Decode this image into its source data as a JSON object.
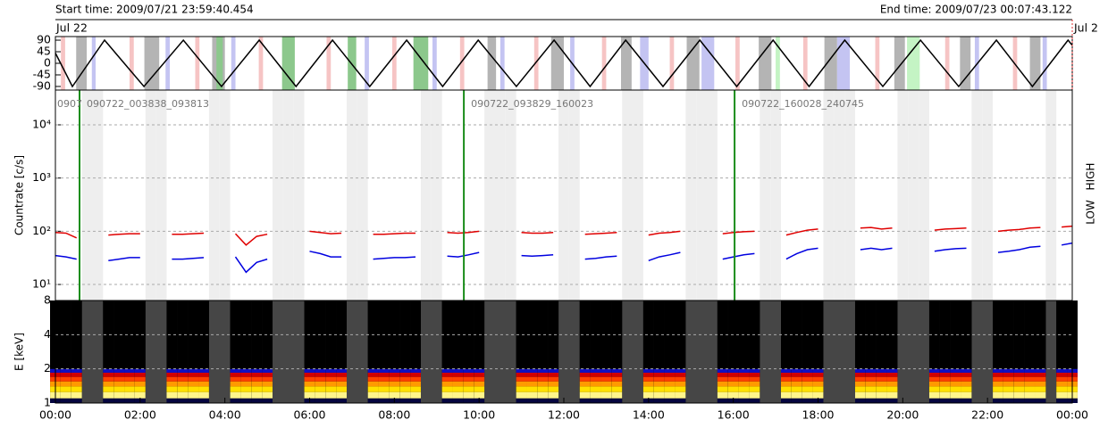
{
  "header": {
    "start": "Start time: 2009/07/21 23:59:40.454",
    "end": "End time: 2009/07/23 00:07:43.122"
  },
  "chart_data": [
    {
      "type": "line",
      "date_labels": [
        "Jul 22",
        "Jul 2"
      ],
      "marker_color": "#e03030",
      "x": [
        0,
        0.4,
        1.16,
        2.09,
        3.02,
        3.92,
        4.81,
        5.68,
        6.54,
        7.42,
        8.29,
        9.14,
        9.98,
        10.88,
        11.77,
        12.62,
        13.46,
        14.34,
        15.21,
        16.08,
        16.94,
        17.79,
        18.63,
        19.53,
        20.42,
        21.32,
        22.21,
        23.06,
        23.9,
        24
      ],
      "values": [
        40,
        -90,
        90,
        -90,
        90,
        -90,
        90,
        -90,
        90,
        -90,
        90,
        -90,
        90,
        -90,
        90,
        -90,
        90,
        -90,
        90,
        -90,
        90,
        -90,
        90,
        -90,
        90,
        -90,
        90,
        -90,
        90,
        70
      ],
      "color": "#000000",
      "ylim": [
        -104,
        104
      ],
      "yticks": [
        90,
        45,
        0,
        -45,
        -90
      ],
      "xlim": [
        0,
        24
      ],
      "bands": [
        {
          "start": 0.13,
          "end": 0.23,
          "color": "#f6c4c4"
        },
        {
          "start": 0.49,
          "end": 0.74,
          "color": "#b4b4b4"
        },
        {
          "start": 0.86,
          "end": 0.95,
          "color": "#c4c4f2"
        },
        {
          "start": 1.75,
          "end": 1.85,
          "color": "#f6c4c4"
        },
        {
          "start": 2.1,
          "end": 2.45,
          "color": "#b4b4b4"
        },
        {
          "start": 2.6,
          "end": 2.7,
          "color": "#c4c4f2"
        },
        {
          "start": 3.3,
          "end": 3.4,
          "color": "#f6c4c4"
        },
        {
          "start": 3.7,
          "end": 4.0,
          "color": "#b4b4b4"
        },
        {
          "start": 3.8,
          "end": 3.95,
          "color": "#8cc88c"
        },
        {
          "start": 4.15,
          "end": 4.25,
          "color": "#c4c4f2"
        },
        {
          "start": 4.8,
          "end": 4.9,
          "color": "#f6c4c4"
        },
        {
          "start": 5.35,
          "end": 5.65,
          "color": "#8cc88c"
        },
        {
          "start": 6.4,
          "end": 6.5,
          "color": "#f6c4c4"
        },
        {
          "start": 6.9,
          "end": 7.1,
          "color": "#8cc88c"
        },
        {
          "start": 7.3,
          "end": 7.4,
          "color": "#c4c4f2"
        },
        {
          "start": 7.95,
          "end": 8.05,
          "color": "#f6c4c4"
        },
        {
          "start": 8.45,
          "end": 8.8,
          "color": "#8cc88c"
        },
        {
          "start": 8.9,
          "end": 9.0,
          "color": "#c4c4f2"
        },
        {
          "start": 9.55,
          "end": 9.65,
          "color": "#f6c4c4"
        },
        {
          "start": 10.2,
          "end": 10.4,
          "color": "#b4b4b4"
        },
        {
          "start": 10.5,
          "end": 10.6,
          "color": "#c4c4f2"
        },
        {
          "start": 11.3,
          "end": 11.4,
          "color": "#f6c4c4"
        },
        {
          "start": 11.7,
          "end": 12.0,
          "color": "#b4b4b4"
        },
        {
          "start": 12.15,
          "end": 12.25,
          "color": "#c4c4f2"
        },
        {
          "start": 12.9,
          "end": 13.0,
          "color": "#f6c4c4"
        },
        {
          "start": 13.35,
          "end": 13.6,
          "color": "#b4b4b4"
        },
        {
          "start": 13.8,
          "end": 14.0,
          "color": "#c4c4f2"
        },
        {
          "start": 14.5,
          "end": 14.6,
          "color": "#f6c4c4"
        },
        {
          "start": 14.9,
          "end": 15.2,
          "color": "#b4b4b4"
        },
        {
          "start": 15.25,
          "end": 15.55,
          "color": "#c4c4f2"
        },
        {
          "start": 16.05,
          "end": 16.15,
          "color": "#f6c4c4"
        },
        {
          "start": 16.6,
          "end": 16.9,
          "color": "#b4b4b4"
        },
        {
          "start": 17.0,
          "end": 17.1,
          "color": "#c4f4c4"
        },
        {
          "start": 17.65,
          "end": 17.75,
          "color": "#f6c4c4"
        },
        {
          "start": 18.15,
          "end": 18.45,
          "color": "#b4b4b4"
        },
        {
          "start": 18.45,
          "end": 18.75,
          "color": "#c4c4f2"
        },
        {
          "start": 19.35,
          "end": 19.45,
          "color": "#f6c4c4"
        },
        {
          "start": 19.8,
          "end": 20.05,
          "color": "#b4b4b4"
        },
        {
          "start": 20.1,
          "end": 20.4,
          "color": "#c4f4c4"
        },
        {
          "start": 21.0,
          "end": 21.1,
          "color": "#f6c4c4"
        },
        {
          "start": 21.35,
          "end": 21.6,
          "color": "#b4b4b4"
        },
        {
          "start": 21.7,
          "end": 21.8,
          "color": "#c4c4f2"
        },
        {
          "start": 22.6,
          "end": 22.7,
          "color": "#f6c4c4"
        },
        {
          "start": 23.0,
          "end": 23.25,
          "color": "#b4b4b4"
        },
        {
          "start": 23.3,
          "end": 23.4,
          "color": "#c4c4f2"
        }
      ]
    },
    {
      "type": "line",
      "log": true,
      "ylabel": "Countrate [c/s]",
      "grid": true,
      "gap_color": "#eeeeee",
      "boundary_color": "#1a8c1a",
      "x": [
        0,
        0.25,
        0.5,
        0.75,
        1,
        1.25,
        1.5,
        1.75,
        2,
        2.25,
        2.5,
        2.75,
        3,
        3.25,
        3.5,
        3.75,
        4,
        4.25,
        4.5,
        4.75,
        5,
        5.25,
        5.5,
        5.75,
        6,
        6.25,
        6.5,
        6.75,
        7,
        7.25,
        7.5,
        7.75,
        8,
        8.25,
        8.5,
        8.75,
        9,
        9.25,
        9.5,
        9.75,
        10,
        10.25,
        10.5,
        10.75,
        11,
        11.25,
        11.5,
        11.75,
        12,
        12.25,
        12.5,
        12.75,
        13,
        13.25,
        13.5,
        13.75,
        14,
        14.25,
        14.5,
        14.75,
        15,
        15.25,
        15.5,
        15.75,
        16,
        16.25,
        16.5,
        16.75,
        17,
        17.25,
        17.5,
        17.75,
        18,
        18.25,
        18.5,
        18.75,
        19,
        19.25,
        19.5,
        19.75,
        20,
        20.25,
        20.5,
        20.75,
        21,
        21.25,
        21.5,
        21.75,
        22,
        22.25,
        22.5,
        22.75,
        23,
        23.25,
        23.5,
        23.75,
        24
      ],
      "series": [
        {
          "name": "LOW",
          "color": "#e00000",
          "values": [
            95,
            92,
            75,
            null,
            null,
            85,
            88,
            90,
            90,
            null,
            null,
            88,
            88,
            90,
            92,
            null,
            null,
            90,
            55,
            80,
            88,
            null,
            null,
            null,
            100,
            95,
            90,
            92,
            null,
            null,
            88,
            88,
            90,
            92,
            92,
            null,
            null,
            95,
            92,
            95,
            100,
            null,
            null,
            null,
            95,
            92,
            92,
            95,
            null,
            null,
            88,
            90,
            92,
            95,
            null,
            null,
            85,
            92,
            95,
            100,
            null,
            null,
            null,
            90,
            95,
            98,
            100,
            null,
            null,
            85,
            95,
            105,
            110,
            null,
            null,
            null,
            115,
            118,
            110,
            115,
            null,
            null,
            null,
            105,
            110,
            112,
            115,
            null,
            null,
            100,
            105,
            108,
            115,
            118,
            null,
            120,
            125
          ]
        },
        {
          "name": "HIGH",
          "color": "#0000e0",
          "values": [
            35,
            33,
            30,
            null,
            null,
            28,
            30,
            32,
            32,
            null,
            null,
            30,
            30,
            31,
            32,
            null,
            null,
            33,
            17,
            26,
            30,
            null,
            null,
            null,
            42,
            38,
            33,
            33,
            null,
            null,
            30,
            31,
            32,
            32,
            33,
            null,
            null,
            34,
            33,
            36,
            40,
            null,
            null,
            null,
            35,
            34,
            35,
            36,
            null,
            null,
            30,
            31,
            33,
            34,
            null,
            null,
            28,
            33,
            36,
            40,
            null,
            null,
            null,
            30,
            33,
            36,
            38,
            null,
            null,
            30,
            38,
            45,
            48,
            null,
            null,
            null,
            45,
            48,
            45,
            48,
            null,
            null,
            null,
            42,
            45,
            47,
            48,
            null,
            null,
            40,
            42,
            45,
            50,
            52,
            null,
            55,
            60
          ]
        }
      ],
      "ylim": [
        5,
        45000
      ],
      "yticks": [
        {
          "value": 10,
          "label": "10¹"
        },
        {
          "value": 100,
          "label": "10²"
        },
        {
          "value": 1000,
          "label": "10³"
        },
        {
          "value": 10000,
          "label": "10⁴"
        }
      ],
      "xlim": [
        0,
        24
      ],
      "file_boundaries": [
        0.57,
        9.64,
        16.03
      ],
      "annotations": [
        {
          "x": 0,
          "text": "0907"
        },
        {
          "x": 0.57,
          "text": "090722_003838_093813"
        },
        {
          "x": 9.64,
          "text": "090722_093829_160023"
        },
        {
          "x": 16.03,
          "text": "090722_160028_240745"
        }
      ]
    },
    {
      "type": "heatmap",
      "log": true,
      "ylabel": "E [keV]",
      "grid": true,
      "background": "#464646",
      "data_background": "#000000",
      "energy_bins": [
        1,
        1.1,
        1.25,
        1.4,
        1.55,
        1.7,
        1.85,
        2.0,
        8
      ],
      "levels": [
        0.05,
        0.95,
        0.85,
        0.7,
        0.5,
        0.35,
        0.15,
        0
      ],
      "colormap": [
        [
          0,
          "#000000"
        ],
        [
          0.15,
          "#1010c0"
        ],
        [
          0.35,
          "#d00000"
        ],
        [
          0.5,
          "#ff4000"
        ],
        [
          0.7,
          "#ff9a00"
        ],
        [
          0.85,
          "#ffe000"
        ],
        [
          1,
          "#ffffd0"
        ]
      ],
      "ylim": [
        1,
        8
      ],
      "yticks": [
        1,
        2,
        4,
        8
      ],
      "xlim": [
        0,
        24
      ],
      "xticks": [
        {
          "value": 0,
          "label": "00:00"
        },
        {
          "value": 2,
          "label": "02:00"
        },
        {
          "value": 4,
          "label": "04:00"
        },
        {
          "value": 6,
          "label": "06:00"
        },
        {
          "value": 8,
          "label": "08:00"
        },
        {
          "value": 10,
          "label": "10:00"
        },
        {
          "value": 12,
          "label": "12:00"
        },
        {
          "value": 14,
          "label": "14:00"
        },
        {
          "value": 16,
          "label": "16:00"
        },
        {
          "value": 18,
          "label": "18:00"
        },
        {
          "value": 20,
          "label": "20:00"
        },
        {
          "value": 22,
          "label": "22:00"
        },
        {
          "value": 24,
          "label": "00:00"
        }
      ]
    }
  ]
}
